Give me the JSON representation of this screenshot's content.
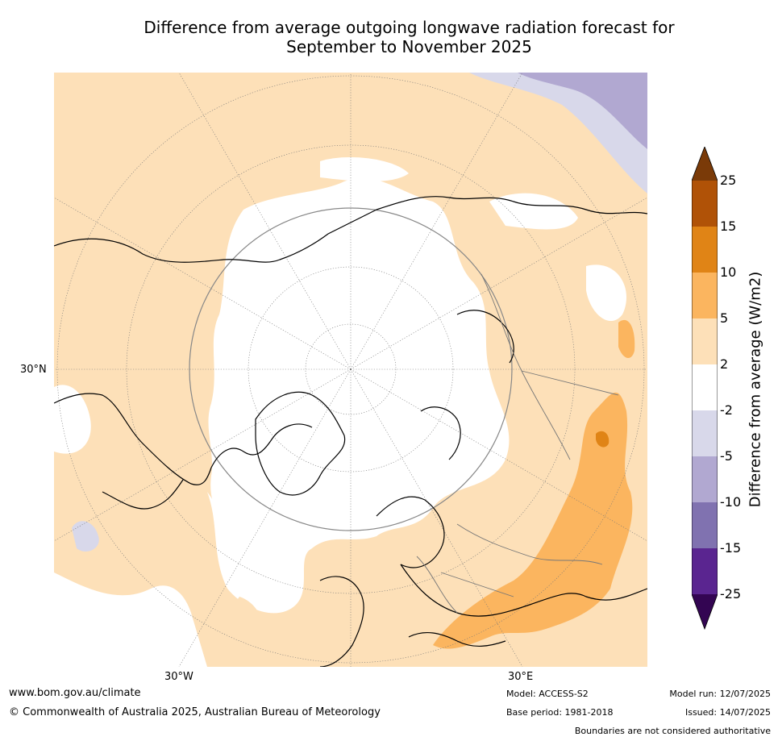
{
  "title_line1": "Difference from average outgoing longwave radiation forecast for",
  "title_line2": "September to November 2025",
  "map_labels": {
    "lat_30n": "30°N",
    "lon_30w": "30°W",
    "lon_30e": "30°E"
  },
  "colorbar": {
    "title": "Difference from average (W/m2)",
    "ticks": [
      "25",
      "15",
      "10",
      "5",
      "2",
      "-2",
      "-5",
      "-10",
      "-15",
      "-25"
    ],
    "colors": {
      "over": "#7a3a08",
      "b15_25": "#b05207",
      "b10_15": "#e08416",
      "b5_10": "#fbb55f",
      "b2_5": "#fde0b8",
      "neutral": "#ffffff",
      "bm5_m2": "#d8d8ea",
      "bm10_m5": "#b1a8d1",
      "bm15_m10": "#8072b0",
      "bm25_m15": "#5a2590",
      "under": "#330552"
    }
  },
  "footer": {
    "website": "www.bom.gov.au/climate",
    "copyright": "© Commonwealth of Australia 2025, Australian Bureau of Meteorology",
    "model": "Model: ACCESS-S2",
    "base_period": "Base period: 1981-2018",
    "model_run": "Model run: 12/07/2025",
    "issued": "Issued: 14/07/2025",
    "disclaimer": "Boundaries are not considered authoritative"
  }
}
